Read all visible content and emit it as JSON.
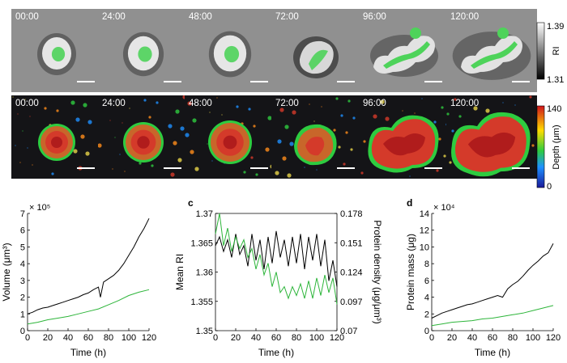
{
  "timepoints": [
    "00:00",
    "24:00",
    "48:00",
    "72:00",
    "96:00",
    "120:00"
  ],
  "colorbar_ri": {
    "label": "RI",
    "max": "1.39",
    "min": "1.31"
  },
  "colorbar_depth": {
    "label": "Depth (μm)",
    "max": "140",
    "min": "0"
  },
  "colors": {
    "black_series": "#000000",
    "green_series": "#2db53a",
    "ri_bg": "#9a9a9a",
    "depth_bg": "#141417"
  },
  "chart_data": [
    {
      "type": "line",
      "panel_label": "",
      "xlabel": "Time (h)",
      "ylabel": "Volume (μm³)",
      "multiplier": "× 10⁵",
      "xlim": [
        0,
        120
      ],
      "ylim": [
        0,
        7
      ],
      "xticks": [
        "0",
        "20",
        "40",
        "60",
        "80",
        "100",
        "120"
      ],
      "yticks": [
        "0",
        "1",
        "2",
        "3",
        "4",
        "5",
        "6",
        "7"
      ],
      "series": [
        {
          "color": "#000000",
          "x": [
            0,
            5,
            10,
            15,
            20,
            25,
            30,
            35,
            40,
            45,
            50,
            55,
            60,
            65,
            70,
            72,
            75,
            80,
            85,
            90,
            95,
            100,
            105,
            110,
            115,
            120
          ],
          "y": [
            1.0,
            1.1,
            1.25,
            1.35,
            1.4,
            1.5,
            1.6,
            1.7,
            1.8,
            1.9,
            2.0,
            2.15,
            2.25,
            2.45,
            2.6,
            2.0,
            2.9,
            3.1,
            3.3,
            3.6,
            4.0,
            4.5,
            5.0,
            5.6,
            6.1,
            6.7
          ]
        },
        {
          "color": "#2db53a",
          "x": [
            0,
            10,
            20,
            30,
            40,
            50,
            60,
            70,
            80,
            90,
            100,
            110,
            120
          ],
          "y": [
            0.4,
            0.5,
            0.65,
            0.75,
            0.85,
            1.0,
            1.15,
            1.3,
            1.55,
            1.8,
            2.1,
            2.3,
            2.45
          ]
        }
      ]
    },
    {
      "type": "line",
      "panel_label": "c",
      "xlabel": "Time (h)",
      "ylabel": "Mean RI",
      "ylabel_right": "Protein density (μg/μm³)",
      "xlim": [
        0,
        120
      ],
      "ylim": [
        1.35,
        1.37
      ],
      "ylim_right": [
        0.07,
        0.178
      ],
      "xticks": [
        "0",
        "20",
        "40",
        "60",
        "80",
        "100",
        "120"
      ],
      "yticks": [
        "1.35",
        "1.355",
        "1.36",
        "1.365",
        "1.37"
      ],
      "yticks_right": [
        "0.07",
        "0.097",
        "0.124",
        "0.151",
        "0.178"
      ],
      "series": [
        {
          "color": "#000000",
          "axis": "left",
          "x": [
            0,
            4,
            8,
            12,
            16,
            20,
            24,
            28,
            32,
            36,
            40,
            44,
            48,
            52,
            56,
            60,
            64,
            68,
            72,
            76,
            80,
            84,
            88,
            92,
            96,
            100,
            104,
            108,
            112,
            116,
            120
          ],
          "y": [
            1.3645,
            1.366,
            1.3635,
            1.3655,
            1.3625,
            1.3665,
            1.363,
            1.3645,
            1.361,
            1.3665,
            1.362,
            1.3655,
            1.3605,
            1.366,
            1.3615,
            1.367,
            1.3625,
            1.3655,
            1.361,
            1.366,
            1.3615,
            1.3665,
            1.3605,
            1.366,
            1.362,
            1.3665,
            1.361,
            1.3655,
            1.3585,
            1.362,
            1.3575
          ]
        },
        {
          "color": "#2db53a",
          "axis": "left",
          "x": [
            0,
            4,
            8,
            12,
            16,
            20,
            24,
            28,
            32,
            36,
            40,
            44,
            48,
            52,
            56,
            60,
            64,
            68,
            72,
            76,
            80,
            84,
            88,
            92,
            96,
            100,
            104,
            108,
            112,
            116,
            120
          ],
          "y": [
            1.3665,
            1.37,
            1.3645,
            1.3675,
            1.3635,
            1.366,
            1.364,
            1.3655,
            1.3625,
            1.364,
            1.3605,
            1.363,
            1.3595,
            1.3615,
            1.3575,
            1.36,
            1.3565,
            1.3575,
            1.3555,
            1.3575,
            1.356,
            1.358,
            1.3555,
            1.3585,
            1.3555,
            1.359,
            1.356,
            1.3595,
            1.3565,
            1.359,
            1.3545
          ]
        }
      ]
    },
    {
      "type": "line",
      "panel_label": "d",
      "xlabel": "Time (h)",
      "ylabel": "Protein mass (μg)",
      "multiplier": "× 10⁴",
      "xlim": [
        0,
        120
      ],
      "ylim": [
        0,
        14
      ],
      "xticks": [
        "0",
        "20",
        "40",
        "60",
        "80",
        "100",
        "120"
      ],
      "yticks": [
        "0",
        "2",
        "4",
        "6",
        "8",
        "10",
        "12",
        "14"
      ],
      "series": [
        {
          "color": "#000000",
          "x": [
            0,
            5,
            10,
            15,
            20,
            25,
            30,
            35,
            40,
            45,
            50,
            55,
            60,
            65,
            70,
            75,
            80,
            85,
            90,
            95,
            100,
            105,
            110,
            115,
            120
          ],
          "y": [
            1.5,
            1.8,
            2.1,
            2.3,
            2.5,
            2.7,
            2.9,
            3.1,
            3.2,
            3.4,
            3.6,
            3.8,
            4.0,
            4.2,
            4.0,
            5.0,
            5.5,
            5.9,
            6.5,
            7.2,
            7.8,
            8.3,
            8.9,
            9.3,
            10.4
          ]
        },
        {
          "color": "#2db53a",
          "x": [
            0,
            10,
            20,
            30,
            40,
            50,
            60,
            70,
            80,
            90,
            100,
            110,
            120
          ],
          "y": [
            0.6,
            0.8,
            1.0,
            1.1,
            1.2,
            1.4,
            1.5,
            1.7,
            1.9,
            2.1,
            2.4,
            2.7,
            3.0
          ]
        }
      ]
    }
  ]
}
